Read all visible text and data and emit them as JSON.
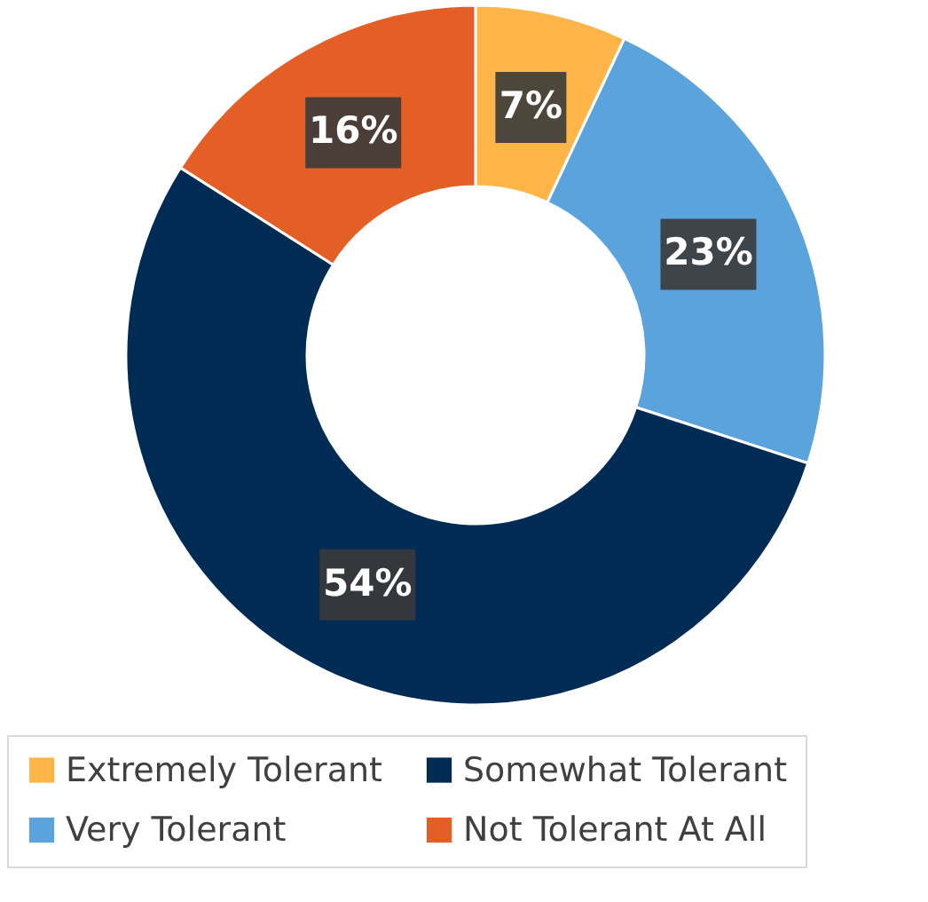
{
  "chart_data": {
    "type": "donut",
    "categories": [
      "Extremely Tolerant",
      "Very Tolerant",
      "Somewhat Tolerant",
      "Not Tolerant At All"
    ],
    "values": [
      7,
      23,
      54,
      16
    ],
    "colors": [
      "#ffb547",
      "#5ba3dc",
      "#002b54",
      "#e35f25"
    ],
    "value_labels": [
      "7%",
      "23%",
      "54%",
      "16%"
    ],
    "legend": "bottom"
  }
}
